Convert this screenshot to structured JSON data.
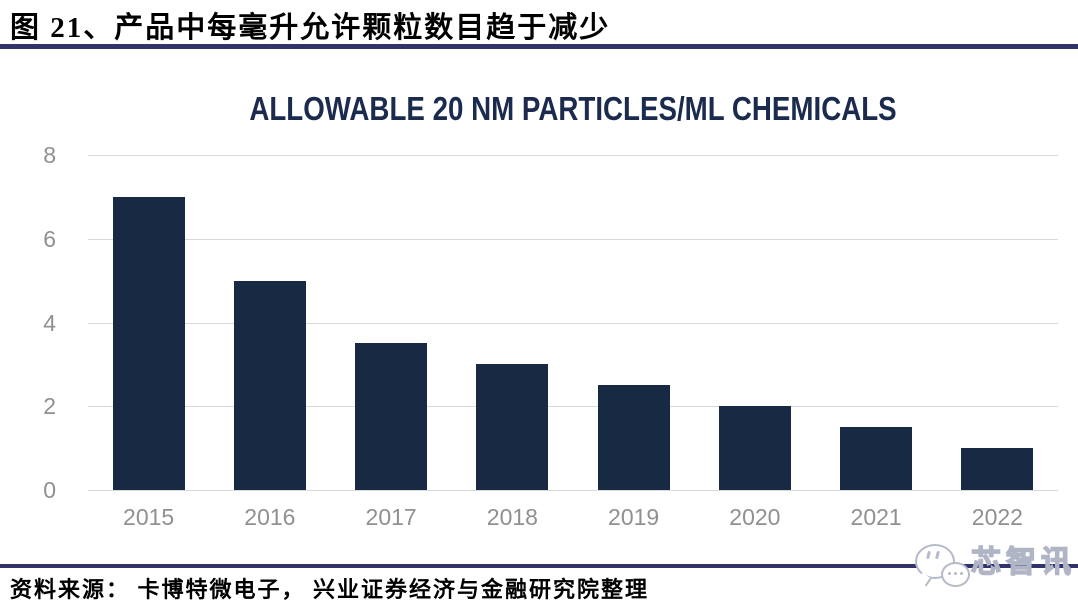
{
  "header": {
    "title": "图 21、产品中每毫升允许颗粒数目趋于减少",
    "divider_color": "#31336a"
  },
  "chart_data": {
    "type": "bar",
    "title": "ALLOWABLE 20 NM PARTICLES/ML CHEMICALS",
    "categories": [
      "2015",
      "2016",
      "2017",
      "2018",
      "2019",
      "2020",
      "2021",
      "2022"
    ],
    "values": [
      7,
      5,
      3.5,
      3,
      2.5,
      2,
      1.5,
      1
    ],
    "xlabel": "",
    "ylabel": "",
    "ylim": [
      0,
      8
    ],
    "yticks": [
      0,
      2,
      4,
      6,
      8
    ],
    "grid": true,
    "legend": "none",
    "bar_color": "#182944",
    "gridline_color": "#d8d8d8",
    "tick_label_color": "#909090",
    "title_color": "#1b2b4d"
  },
  "footer": {
    "source": "资料来源： 卡博特微电子， 兴业证券经济与金融研究院整理",
    "divider_color": "#31336a"
  },
  "watermark": {
    "text": "芯智讯"
  }
}
